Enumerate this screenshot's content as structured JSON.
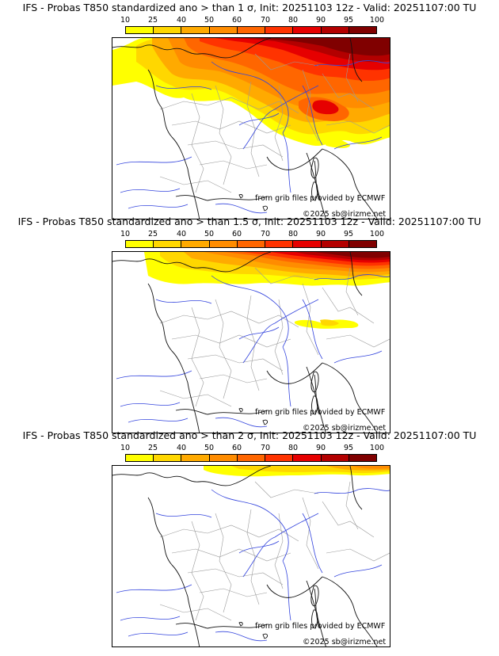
{
  "colors": {
    "scale": [
      "#ffff00",
      "#ffd700",
      "#ffaa00",
      "#ff8c00",
      "#ff6600",
      "#ff3300",
      "#e60000",
      "#b30000",
      "#800000"
    ]
  },
  "scale_ticks": [
    "10",
    "25",
    "40",
    "50",
    "60",
    "70",
    "80",
    "90",
    "95",
    "100"
  ],
  "credits": {
    "source": "from grib files provided by ECMWF",
    "copyright": "©2025 sb@irizme.net"
  },
  "panels": [
    {
      "title": "IFS - Probas T850  standardized ano > than 1 σ, Init: 20251103 12z - Valid: 20251107:00 TU",
      "threshold": "1"
    },
    {
      "title": "IFS - Probas T850  standardized ano > than 1.5 σ, Init: 20251103 12z - Valid: 20251107:00 TU",
      "threshold": "1.5"
    },
    {
      "title": "IFS - Probas T850  standardized ano > than 2 σ, Init: 20251103 12z - Valid: 20251107:00 TU",
      "threshold": "2"
    }
  ]
}
